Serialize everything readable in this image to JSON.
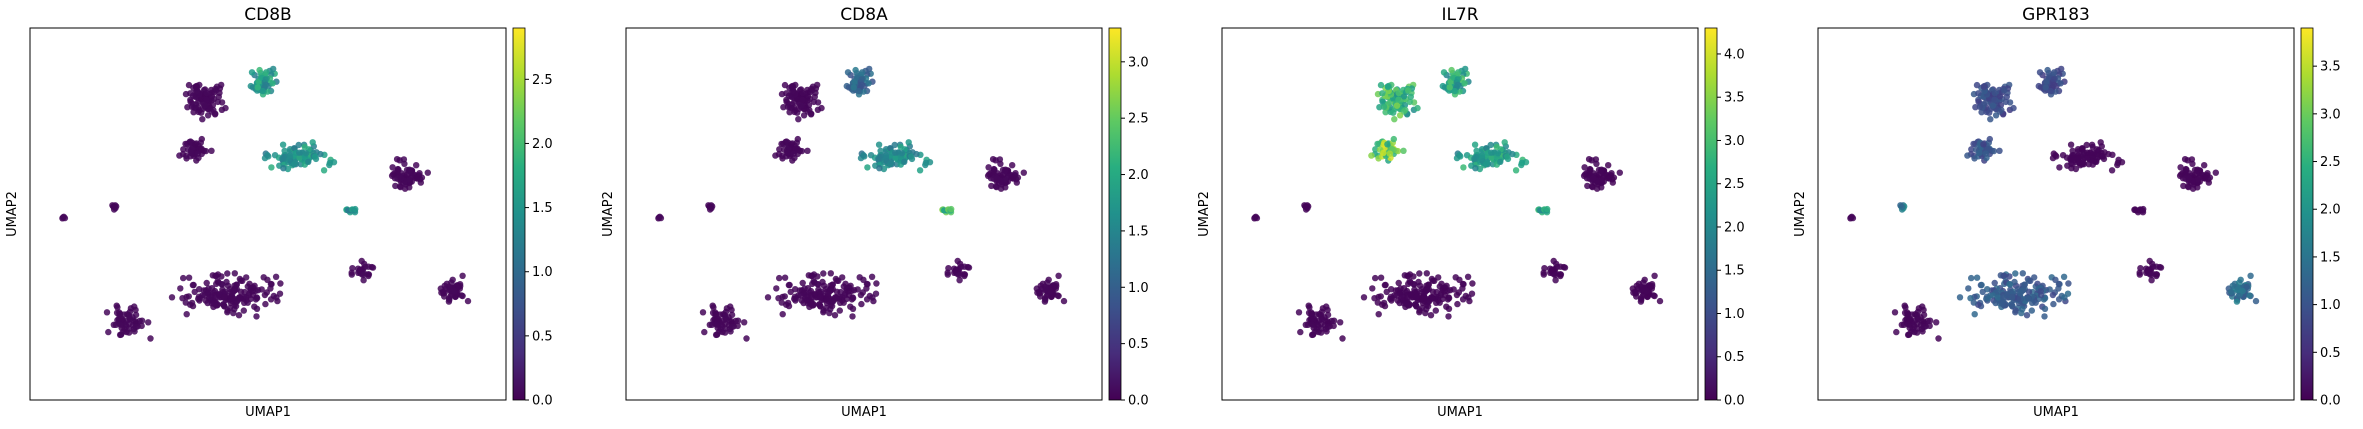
{
  "chart_data": [
    {
      "type": "scatter",
      "title": "CD8B",
      "xlabel": "UMAP1",
      "ylabel": "UMAP2",
      "colorbar": {
        "min": 0.0,
        "max": 2.9,
        "ticks": [
          0.0,
          0.5,
          1.0,
          1.5,
          2.0,
          2.5
        ],
        "tick_labels": [
          "0.0",
          "0.5",
          "1.0",
          "1.5",
          "2.0",
          "2.5"
        ],
        "colormap": "viridis"
      },
      "highlight_clusters": [
        {
          "cluster": "upper-right-lobe",
          "value": 1.6
        },
        {
          "cluster": "central-band",
          "value": 1.5
        },
        {
          "cluster": "small-island-right",
          "value": 1.4
        }
      ]
    },
    {
      "type": "scatter",
      "title": "CD8A",
      "xlabel": "UMAP1",
      "ylabel": "UMAP2",
      "colorbar": {
        "min": 0.0,
        "max": 3.3,
        "ticks": [
          0.0,
          0.5,
          1.0,
          1.5,
          2.0,
          2.5,
          3.0
        ],
        "tick_labels": [
          "0.0",
          "0.5",
          "1.0",
          "1.5",
          "2.0",
          "2.5",
          "3.0"
        ],
        "colormap": "viridis"
      },
      "highlight_clusters": [
        {
          "cluster": "upper-right-lobe",
          "value": 1.1
        },
        {
          "cluster": "central-band",
          "value": 1.6
        },
        {
          "cluster": "small-island-right",
          "value": 2.2
        }
      ]
    },
    {
      "type": "scatter",
      "title": "IL7R",
      "xlabel": "UMAP1",
      "ylabel": "UMAP2",
      "colorbar": {
        "min": 0.0,
        "max": 4.3,
        "ticks": [
          0.0,
          0.5,
          1.0,
          1.5,
          2.0,
          2.5,
          3.0,
          3.5,
          4.0
        ],
        "tick_labels": [
          "0.0",
          "0.5",
          "1.0",
          "1.5",
          "2.0",
          "2.5",
          "3.0",
          "3.5",
          "4.0"
        ],
        "colormap": "viridis"
      },
      "highlight_clusters": [
        {
          "cluster": "upper-left-lobe",
          "value": 2.8
        },
        {
          "cluster": "upper-right-lobe",
          "value": 2.6
        },
        {
          "cluster": "left-bulge",
          "value": 3.3
        },
        {
          "cluster": "central-band",
          "value": 2.4
        },
        {
          "cluster": "small-island-right",
          "value": 2.4
        }
      ]
    },
    {
      "type": "scatter",
      "title": "GPR183",
      "xlabel": "UMAP1",
      "ylabel": "UMAP2",
      "colorbar": {
        "min": 0.0,
        "max": 3.9,
        "ticks": [
          0.0,
          0.5,
          1.0,
          1.5,
          2.0,
          2.5,
          3.0,
          3.5
        ],
        "tick_labels": [
          "0.0",
          "0.5",
          "1.0",
          "1.5",
          "2.0",
          "2.5",
          "3.0",
          "3.5"
        ],
        "colormap": "viridis"
      },
      "highlight_clusters": [
        {
          "cluster": "upper-left-lobe",
          "value": 0.9
        },
        {
          "cluster": "upper-right-lobe",
          "value": 0.9
        },
        {
          "cluster": "left-bulge",
          "value": 1.0
        },
        {
          "cluster": "lower-main",
          "value": 1.1
        },
        {
          "cluster": "lower-right",
          "value": 1.4
        },
        {
          "cluster": "small-cluster-left",
          "value": 1.6
        }
      ]
    }
  ]
}
